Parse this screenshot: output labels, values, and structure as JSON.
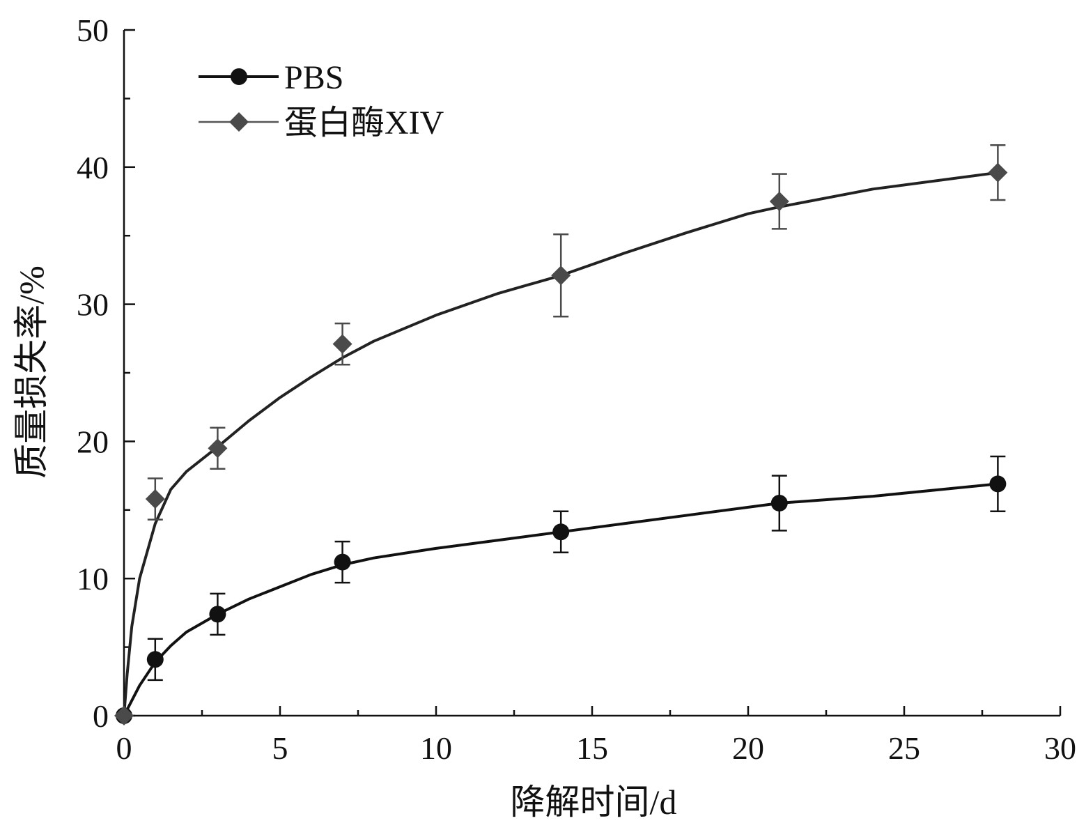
{
  "chart_data": {
    "type": "scatter",
    "title": "",
    "xlabel": "降解时间/d",
    "ylabel": "质量损失率/%",
    "xlim": [
      0,
      30
    ],
    "ylim": [
      0,
      50
    ],
    "xticks": [
      0,
      5,
      10,
      15,
      20,
      25,
      30
    ],
    "yticks": [
      0,
      10,
      20,
      30,
      40,
      50
    ],
    "grid": false,
    "legend_position": "top-left",
    "series": [
      {
        "name": "PBS",
        "marker": "circle",
        "color": "#111111",
        "x": [
          0,
          1,
          3,
          7,
          14,
          21,
          28
        ],
        "y": [
          0,
          4.1,
          7.4,
          11.2,
          13.4,
          15.5,
          16.9
        ],
        "error": [
          0,
          1.5,
          1.5,
          1.5,
          1.5,
          2.0,
          2.0
        ],
        "fit": [
          [
            0,
            0
          ],
          [
            0.5,
            2.2
          ],
          [
            1,
            3.9
          ],
          [
            1.5,
            5.1
          ],
          [
            2,
            6.1
          ],
          [
            3,
            7.4
          ],
          [
            4,
            8.5
          ],
          [
            5,
            9.4
          ],
          [
            6,
            10.3
          ],
          [
            7,
            11.0
          ],
          [
            8,
            11.5
          ],
          [
            10,
            12.2
          ],
          [
            12,
            12.8
          ],
          [
            14,
            13.4
          ],
          [
            16,
            14.0
          ],
          [
            18,
            14.6
          ],
          [
            21,
            15.5
          ],
          [
            24,
            16.0
          ],
          [
            28,
            16.9
          ]
        ]
      },
      {
        "name": "蛋白酶XIV",
        "marker": "diamond",
        "color": "#4a4a4a",
        "x": [
          0,
          1,
          3,
          7,
          14,
          21,
          28
        ],
        "y": [
          0,
          15.8,
          19.5,
          27.1,
          32.1,
          37.5,
          39.6
        ],
        "error": [
          0,
          1.5,
          1.5,
          1.5,
          3.0,
          2.0,
          2.0
        ],
        "fit": [
          [
            0,
            0
          ],
          [
            0.1,
            3.0
          ],
          [
            0.25,
            6.5
          ],
          [
            0.5,
            10.0
          ],
          [
            1,
            14.0
          ],
          [
            1.5,
            16.5
          ],
          [
            2,
            17.8
          ],
          [
            3,
            19.6
          ],
          [
            4,
            21.5
          ],
          [
            5,
            23.2
          ],
          [
            6,
            24.7
          ],
          [
            7,
            26.1
          ],
          [
            8,
            27.3
          ],
          [
            10,
            29.2
          ],
          [
            12,
            30.8
          ],
          [
            14,
            32.1
          ],
          [
            16,
            33.7
          ],
          [
            18,
            35.2
          ],
          [
            20,
            36.6
          ],
          [
            21,
            37.1
          ],
          [
            24,
            38.4
          ],
          [
            28,
            39.6
          ]
        ]
      }
    ]
  }
}
